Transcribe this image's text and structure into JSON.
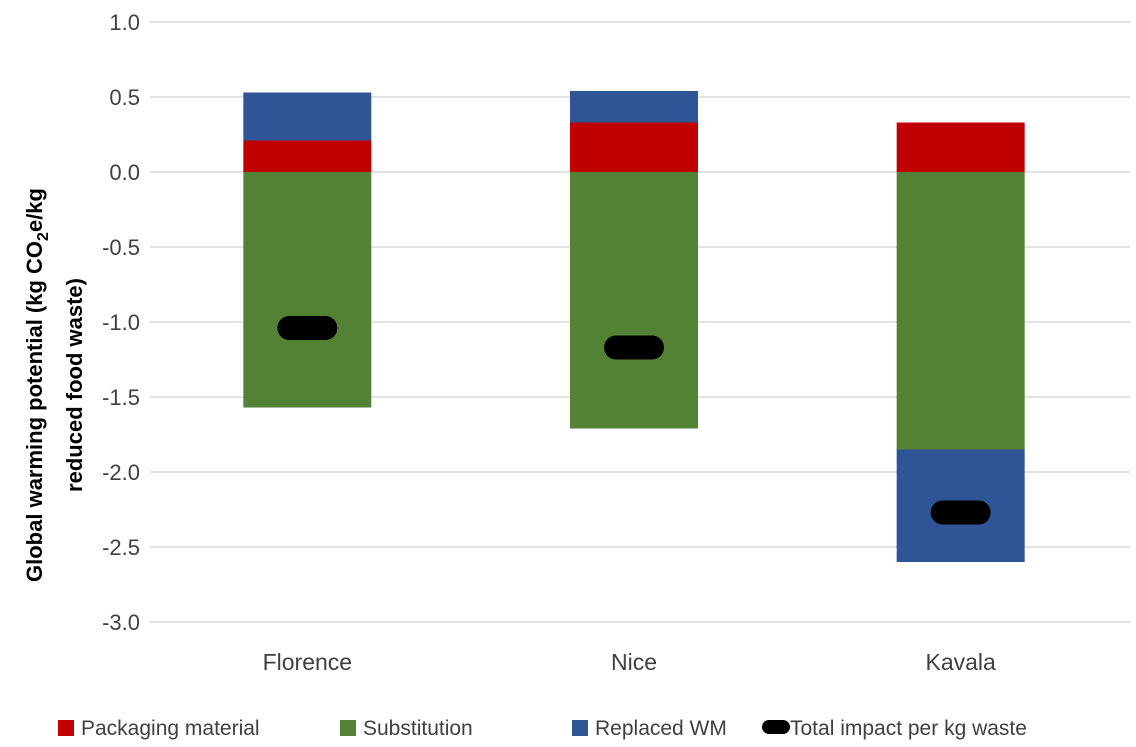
{
  "chart_data": {
    "type": "bar",
    "stacked": true,
    "categories": [
      "Florence",
      "Nice",
      "Kavala"
    ],
    "series": [
      {
        "name": "Packaging material",
        "color": "#C00000",
        "values": [
          0.21,
          0.33,
          0.33
        ]
      },
      {
        "name": "Substitution",
        "color": "#548235",
        "values": [
          -1.57,
          -1.71,
          -1.85
        ]
      },
      {
        "name": "Replaced WM",
        "color": "#2F5597",
        "values": [
          0.32,
          0.21,
          -0.75
        ]
      }
    ],
    "markers": {
      "name": "Total impact per kg waste",
      "color": "#000000",
      "values": [
        -1.04,
        -1.17,
        -2.27
      ]
    },
    "ylabel_line1": "Global warming potential (kg CO",
    "ylabel_sub": "2",
    "ylabel_line1_end": "e/kg",
    "ylabel_line2": "reduced food waste)",
    "ylim": [
      -3.0,
      1.0
    ],
    "yticks": [
      "1.0",
      "0.5",
      "0.0",
      "-0.5",
      "-1.0",
      "-1.5",
      "-2.0",
      "-2.5",
      "-3.0"
    ],
    "grid": true,
    "legend": "bottom"
  }
}
